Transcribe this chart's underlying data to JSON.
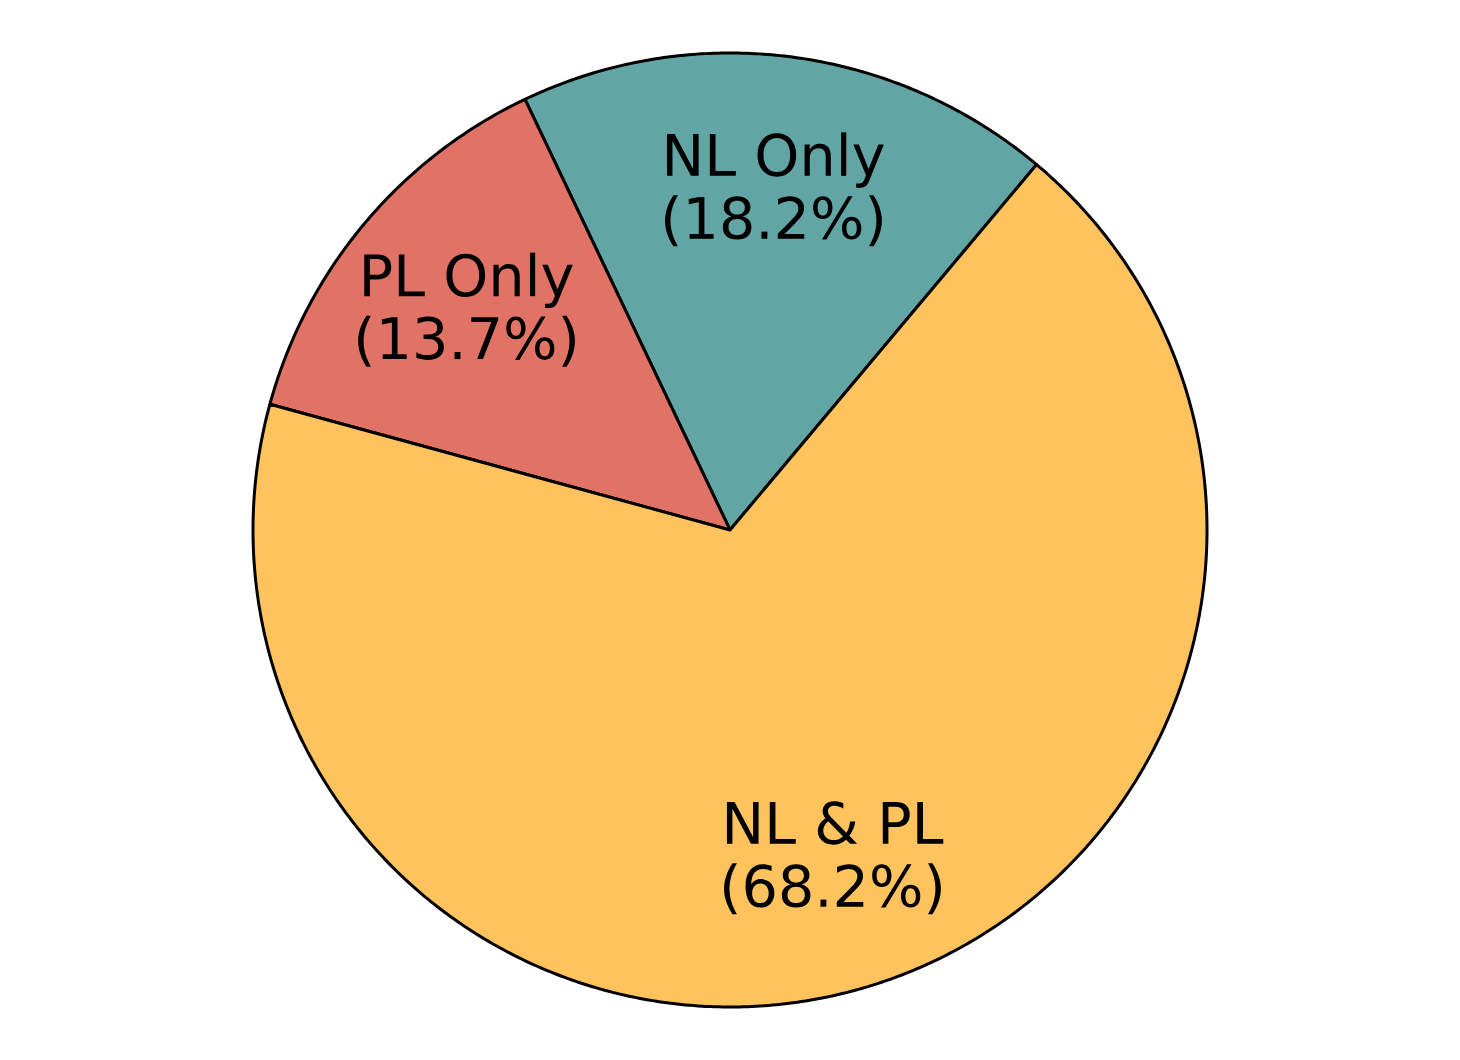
{
  "chart_data": {
    "type": "pie",
    "categories": [
      "NL Only",
      "PL Only",
      "NL & PL"
    ],
    "values": [
      18.2,
      13.7,
      68.2
    ],
    "value_labels": [
      "(18.2%)",
      "(13.7%)",
      "(68.2%)"
    ],
    "colors": [
      "#61a5a5",
      "#e07366",
      "#fec35c"
    ]
  }
}
